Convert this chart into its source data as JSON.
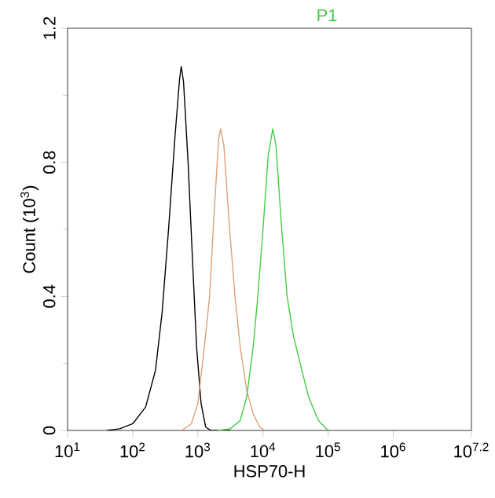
{
  "chart_data": {
    "type": "line",
    "xlabel": "HSP70-H",
    "ylabel": "Count (10$^{3}$)",
    "log": "x",
    "grid": false,
    "marker": "none",
    "line_style": "solid",
    "annotations": [
      "P1"
    ],
    "xlim": [
      10,
      15848932
    ],
    "ylim": [
      0,
      1.2
    ],
    "xticks": [
      {
        "value": 10,
        "label": "10$^{1}$"
      },
      {
        "value": 100,
        "label": "10$^{2}$"
      },
      {
        "value": 1000,
        "label": "10$^{3}$"
      },
      {
        "value": 10000,
        "label": "10$^{4}$"
      },
      {
        "value": 100000,
        "label": "10$^{5}$"
      },
      {
        "value": 1000000,
        "label": "10$^{6}$"
      },
      {
        "value": 15848932,
        "label": "10$^{7.2}$"
      }
    ],
    "yticks": [
      0,
      0.4,
      0.8,
      1.2
    ],
    "series": [
      {
        "color": "#000000",
        "x": [
          39.8,
          63.1,
          100,
          158,
          224,
          282,
          355,
          447,
          525,
          556,
          603,
          708,
          832,
          955,
          1122,
          1318,
          1585,
          3162
        ],
        "values": [
          0,
          0.005,
          0.02,
          0.07,
          0.18,
          0.35,
          0.6,
          0.88,
          1.05,
          1.086,
          1.04,
          0.8,
          0.5,
          0.25,
          0.08,
          0.01,
          0,
          0
        ]
      },
      {
        "color": "#dca27a",
        "x": [
          562,
          794,
          1000,
          1259,
          1514,
          1778,
          2089,
          2239,
          2512,
          3020,
          3715,
          4467,
          5623,
          7079,
          8913,
          10715
        ],
        "values": [
          0,
          0.02,
          0.08,
          0.25,
          0.4,
          0.65,
          0.87,
          0.9,
          0.85,
          0.62,
          0.4,
          0.25,
          0.12,
          0.05,
          0.01,
          0
        ]
      },
      {
        "color": "#44cc44",
        "x": [
          1995,
          3162,
          4467,
          5623,
          7079,
          8318,
          10000,
          12023,
          14125,
          15849,
          19055,
          23442,
          29512,
          37154,
          50119,
          70795,
          100000
        ],
        "values": [
          0,
          0.005,
          0.03,
          0.1,
          0.25,
          0.4,
          0.6,
          0.82,
          0.9,
          0.85,
          0.62,
          0.4,
          0.28,
          0.2,
          0.1,
          0.03,
          0
        ]
      }
    ]
  }
}
